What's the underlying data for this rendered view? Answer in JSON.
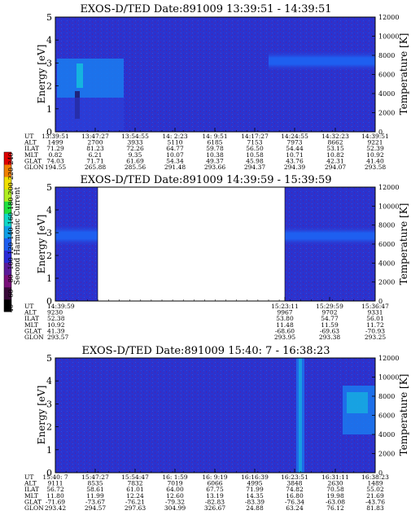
{
  "colorbar": {
    "label": "Second Harmonic Current",
    "ticks": [
      "40",
      "60",
      "80",
      "100",
      "120",
      "140",
      "160",
      "180",
      "200",
      "220",
      "240"
    ],
    "colors": [
      "#000000",
      "#3a0a3a",
      "#7a0f7a",
      "#5a1a9a",
      "#2a2ad8",
      "#1e5ff0",
      "#10a0e8",
      "#10d8c8",
      "#20e040",
      "#b0ee20",
      "#f0e000",
      "#f08000",
      "#e00000"
    ]
  },
  "chart_data": [
    {
      "type": "heatmap",
      "title": "EXOS-D/TED   Date:891009  13:39:51 - 14:39:51",
      "ylabel": "Energy [eV]",
      "y2label": "Temperature [K]",
      "ylim": [
        0,
        5
      ],
      "y2lim": [
        0,
        12000
      ],
      "yticks": [
        "0",
        "1",
        "2",
        "3",
        "4",
        "5"
      ],
      "y2ticks": [
        "0",
        "2000",
        "4000",
        "6000",
        "8000",
        "10000",
        "12000"
      ],
      "row_labels": [
        "UT",
        "ALT",
        "ILAT",
        "MLT",
        "GLAT",
        "GLON"
      ],
      "columns": [
        [
          "13:39:51",
          "1499",
          "71.29",
          "0.82",
          "74.03",
          "194.55"
        ],
        [
          "13:47:27",
          "2700",
          "81.23",
          "6.21",
          "71.71",
          "265.88"
        ],
        [
          "13:54:55",
          "3933",
          "72.26",
          "9.35",
          "61.69",
          "285.56"
        ],
        [
          "14: 2:23",
          "5110",
          "64.77",
          "10.07",
          "54.34",
          "291.48"
        ],
        [
          "14: 9:51",
          "6185",
          "59.78",
          "10.38",
          "49.37",
          "293.66"
        ],
        [
          "14:17:27",
          "7153",
          "56.50",
          "10.58",
          "45.98",
          "294.37"
        ],
        [
          "14:24:55",
          "7973",
          "54.44",
          "10.71",
          "43.76",
          "294.39"
        ],
        [
          "14:32:23",
          "8662",
          "53.15",
          "10.82",
          "42.31",
          "294.07"
        ],
        [
          "14:39:51",
          "9221",
          "52.39",
          "10.92",
          "41.40",
          "293.58"
        ]
      ]
    },
    {
      "type": "heatmap",
      "title": "EXOS-D/TED   Date:891009  14:39:59 - 15:39:59",
      "ylabel": "Energy [eV]",
      "y2label": "Temperature [K]",
      "ylim": [
        0,
        5
      ],
      "y2lim": [
        0,
        12000
      ],
      "yticks": [
        "0",
        "1",
        "2",
        "3",
        "4",
        "5"
      ],
      "y2ticks": [
        "0",
        "2000",
        "4000",
        "6000",
        "8000",
        "10000",
        "12000"
      ],
      "row_labels": [
        "UT",
        "ALT",
        "ILAT",
        "MLT",
        "GLAT",
        "GLON"
      ],
      "columns": [
        [
          "14:39:59",
          "9230",
          "52.38",
          "10.92",
          "41.39",
          "293.57"
        ],
        [
          "15:23:11",
          "9967",
          "53.80",
          "11.48",
          "-68.60",
          "293.95"
        ],
        [
          "15:29:59",
          "9702",
          "54.77",
          "11.59",
          "-69.63",
          "293.38"
        ],
        [
          "15:36:47",
          "9331",
          "56.01",
          "11.72",
          "-70.93",
          "293.25"
        ]
      ]
    },
    {
      "type": "heatmap",
      "title": "EXOS-D/TED   Date:891009  15:40: 7 - 16:38:23",
      "ylabel": "Energy [eV]",
      "y2label": "Temperature [K]",
      "ylim": [
        0,
        5
      ],
      "y2lim": [
        0,
        12000
      ],
      "yticks": [
        "0",
        "1",
        "2",
        "3",
        "4",
        "5"
      ],
      "y2ticks": [
        "0",
        "2000",
        "4000",
        "6000",
        "8000",
        "10000",
        "12000"
      ],
      "row_labels": [
        "UT",
        "ALT",
        "ILAT",
        "MLT",
        "GLAT",
        "GLON"
      ],
      "columns": [
        [
          "15:40: 7",
          "9111",
          "56.72",
          "11.80",
          "-71.69",
          "293.42"
        ],
        [
          "15:47:27",
          "8535",
          "58.61",
          "11.99",
          "-73.67",
          "294.57"
        ],
        [
          "15:54:47",
          "7832",
          "61.01",
          "12.24",
          "-76.21",
          "297.63"
        ],
        [
          "16: 1:59",
          "7019",
          "64.00",
          "12.60",
          "-79.32",
          "304.99"
        ],
        [
          "16: 9:19",
          "6066",
          "67.75",
          "13.19",
          "-82.83",
          "326.67"
        ],
        [
          "16:16:39",
          "4995",
          "71.99",
          "14.35",
          "-83.39",
          "24.88"
        ],
        [
          "16:23:51",
          "3848",
          "74.82",
          "16.80",
          "-76.34",
          "63.24"
        ],
        [
          "16:31:11",
          "2630",
          "70.58",
          "19.98",
          "-63.08",
          "76.12"
        ],
        [
          "16:38:23",
          "1489",
          "55.02",
          "21.69",
          "-43.76",
          "81.83"
        ]
      ]
    }
  ]
}
